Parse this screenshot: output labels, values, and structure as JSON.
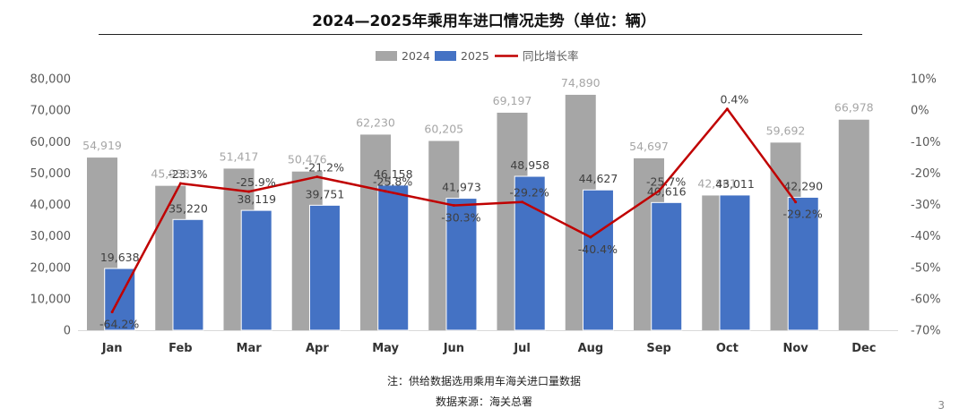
{
  "title": "2024—2025年乘用车进口情况走势（单位：辆）",
  "chart_data": {
    "type": "bar",
    "categories": [
      "Jan",
      "Feb",
      "Mar",
      "Apr",
      "May",
      "Jun",
      "Jul",
      "Aug",
      "Sep",
      "Oct",
      "Nov",
      "Dec"
    ],
    "series": [
      {
        "name": "2024",
        "type": "bar",
        "color": "#a6a6a6",
        "axis": "left",
        "values": [
          54919,
          45933,
          51417,
          50476,
          62230,
          60205,
          69197,
          74890,
          54697,
          42861,
          59692,
          66978
        ],
        "labels": [
          "54,919",
          "45,933",
          "51,417",
          "50,476",
          "62,230",
          "60,205",
          "69,197",
          "74,890",
          "54,697",
          "42,861",
          "59,692",
          "66,978"
        ]
      },
      {
        "name": "2025",
        "type": "bar",
        "color": "#4472c4",
        "axis": "left",
        "values": [
          19638,
          35220,
          38119,
          39751,
          46158,
          41973,
          48958,
          44627,
          40616,
          43011,
          42290,
          null
        ],
        "labels": [
          "19,638",
          "35,220",
          "38,119",
          "39,751",
          "46,158",
          "41,973",
          "48,958",
          "44,627",
          "40,616",
          "43,011",
          "42,290",
          ""
        ]
      },
      {
        "name": "同比增长率",
        "type": "line",
        "color": "#c00000",
        "axis": "right",
        "values": [
          -64.2,
          -23.3,
          -25.9,
          -21.2,
          -25.8,
          -30.3,
          -29.2,
          -40.4,
          -25.7,
          0.4,
          -29.2,
          null
        ],
        "labels": [
          "-64.2%",
          "-23.3%",
          "-25.9%",
          "-21.2%",
          "-25.8%",
          "-30.3%",
          "-29.2%",
          "-40.4%",
          "-25.7%",
          "0.4%",
          "-29.2%",
          ""
        ]
      }
    ],
    "ylim": [
      0,
      80000
    ],
    "yticks": [
      "0",
      "10,000",
      "20,000",
      "30,000",
      "40,000",
      "50,000",
      "60,000",
      "70,000",
      "80,000"
    ],
    "y2lim": [
      -70,
      10
    ],
    "y2ticks": [
      "-70%",
      "-60%",
      "-50%",
      "-40%",
      "-30%",
      "-20%",
      "-10%",
      "0%",
      "10%"
    ],
    "legend": "top-center",
    "grid": false
  },
  "notes": [
    "注：供给数据选用乘用车海关进口量数据",
    "数据来源：海关总署"
  ],
  "page_number": "3"
}
